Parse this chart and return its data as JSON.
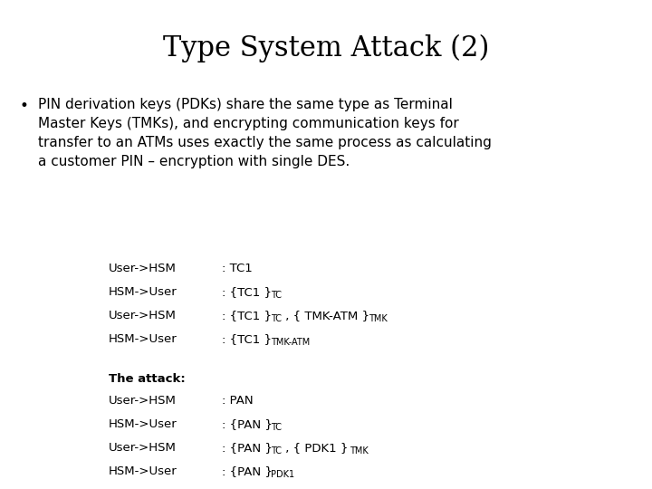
{
  "title": "Type System Attack (2)",
  "background_color": "#ffffff",
  "title_fontsize": 22,
  "body_fontsize": 11,
  "table_fontsize": 9.5,
  "sub_fontsize": 7,
  "bullet_text_line1": "PIN derivation keys (PDKs) share the same type as Terminal",
  "bullet_text_line2": "Master Keys (TMKs), and encrypting communication keys for",
  "bullet_text_line3": "transfer to an ATMs uses exactly the same process as calculating",
  "bullet_text_line4": "a customer PIN – encryption with single DES."
}
